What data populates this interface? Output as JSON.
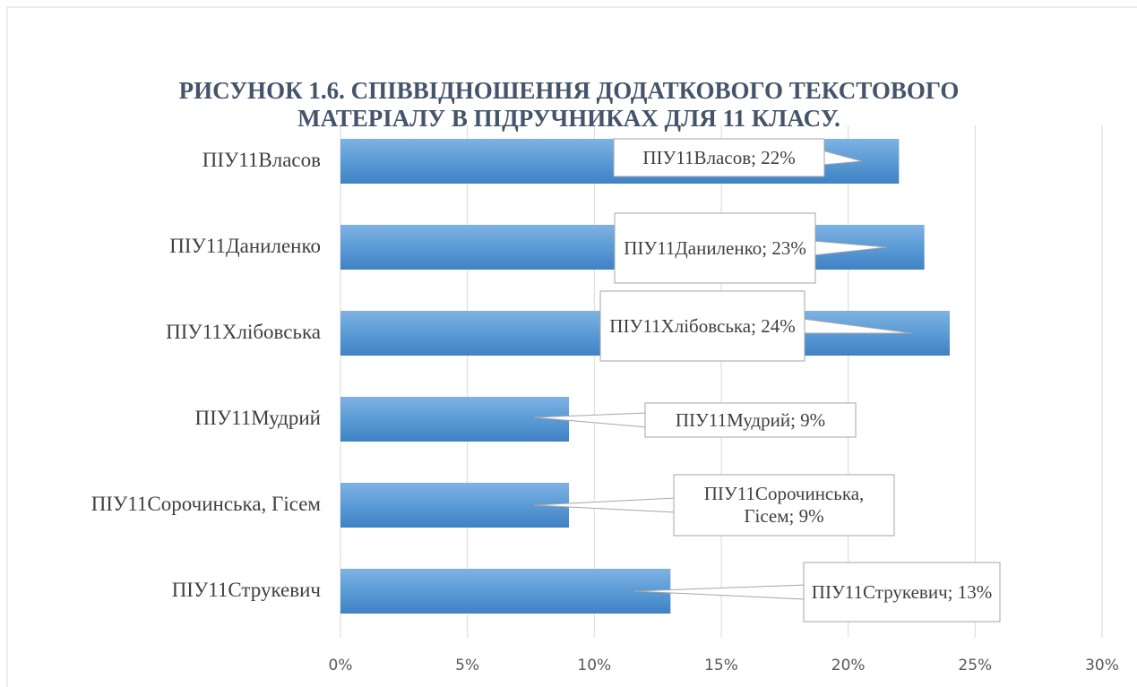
{
  "chart_data": {
    "type": "bar",
    "orientation": "horizontal",
    "title": "РИСУНОК 1.6. СПІВВІДНОШЕННЯ ДОДАТКОВОГО ТЕКСТОВОГО МАТЕРІАЛУ В ПІДРУЧНИКАХ ДЛЯ 11 КЛАСУ.",
    "categories": [
      "ПІУ11Власов",
      "ПІУ11Даниленко",
      "ПІУ11Хлібовська",
      "ПІУ11Мудрий",
      "ПІУ11Сорочинська, Гісем",
      "ПІУ11Струкевич"
    ],
    "values": [
      22,
      23,
      24,
      9,
      9,
      13
    ],
    "value_labels": [
      "ПІУ11Власов; 22%",
      "ПІУ11Даниленко; 23%",
      "ПІУ11Хлібовська; 24%",
      "ПІУ11Мудрий; 9%",
      "ПІУ11Сорочинська, Гісем; 9%",
      "ПІУ11Струкевич; 13%"
    ],
    "color": "#5b9bd5",
    "xlim": [
      0,
      30
    ],
    "xticks": [
      {
        "value": 0,
        "label": "0%"
      },
      {
        "value": 5,
        "label": "5%"
      },
      {
        "value": 10,
        "label": "10%"
      },
      {
        "value": 15,
        "label": "15%"
      },
      {
        "value": 20,
        "label": "20%"
      },
      {
        "value": 25,
        "label": "25%"
      },
      {
        "value": 30,
        "label": "30%"
      }
    ],
    "grid": true
  }
}
